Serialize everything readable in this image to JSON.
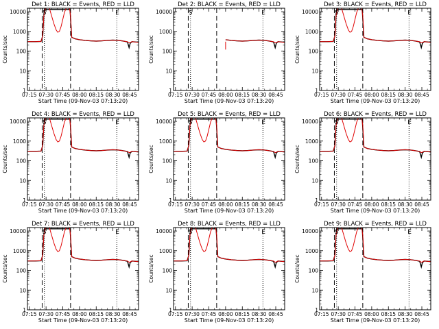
{
  "chart_data": {
    "type": "line",
    "x_tick_labels": [
      "07:15",
      "07:30",
      "07:45",
      "08:00",
      "08:15",
      "08:30",
      "08:45"
    ],
    "x_ticks_minutes": [
      435,
      450,
      465,
      480,
      495,
      510,
      525
    ],
    "xlim_minutes": [
      433.3,
      533.0
    ],
    "ylim": [
      1,
      15000
    ],
    "y_scale": "log",
    "y_tick_labels": [
      "1",
      "10",
      "100",
      "1000",
      "10000"
    ],
    "y_tick_values": [
      1,
      10,
      100,
      1000,
      10000
    ],
    "ylabel": "Counts/sec",
    "xlabel": "Start Time (09-Nov-03 07:13:20)",
    "vertical_markers": {
      "dashed_minutes": [
        446.5,
        472.0
      ],
      "dotted_minutes": [
        448.5,
        513.5
      ]
    },
    "top_markers": [
      {
        "label": "S",
        "x_minutes": 448.5
      },
      {
        "label": "E",
        "x_minutes": 514.0
      }
    ],
    "series_colors": {
      "events": "#000000",
      "lld": "#e00000"
    },
    "panels": [
      {
        "title": "Det 1: BLACK = Events, RED = LLD",
        "has_early_data": true
      },
      {
        "title": "Det 2: BLACK = Events, RED = LLD",
        "has_early_data": false
      },
      {
        "title": "Det 3: BLACK = Events, RED = LLD",
        "has_early_data": true
      },
      {
        "title": "Det 4: BLACK = Events, RED = LLD",
        "has_early_data": true
      },
      {
        "title": "Det 5: BLACK = Events, RED = LLD",
        "has_early_data": true
      },
      {
        "title": "Det 6: BLACK = Events, RED = LLD",
        "has_early_data": true
      },
      {
        "title": "Det 7: BLACK = Events, RED = LLD",
        "has_early_data": true
      },
      {
        "title": "Det 8: BLACK = Events, RED = LLD",
        "has_early_data": true
      },
      {
        "title": "Det 9: BLACK = Events, RED = LLD",
        "has_early_data": true
      }
    ],
    "series_template": {
      "events_x": [
        433.3,
        440,
        445.5,
        447.0,
        448.0,
        448.5,
        471.5,
        473,
        476,
        480,
        485,
        490,
        495,
        500,
        505,
        510,
        515,
        518,
        521,
        523,
        524.5,
        525.5,
        527,
        530,
        533
      ],
      "events_y": [
        300,
        300,
        310,
        600,
        6000,
        13000,
        13000,
        500,
        420,
        380,
        350,
        330,
        320,
        330,
        350,
        360,
        350,
        330,
        310,
        290,
        150,
        250,
        300,
        290,
        280
      ],
      "lld_x": [
        433.3,
        440,
        445.5,
        447.0,
        448.0,
        449.5,
        451,
        453,
        455,
        457,
        459,
        460.5,
        462,
        463.5,
        465,
        466.5,
        468,
        469.5,
        471,
        472,
        473,
        476,
        480,
        485,
        490,
        495,
        500,
        505,
        510,
        515,
        518,
        521,
        523,
        524.5,
        525.5,
        527,
        530,
        533
      ],
      "lld_y": [
        300,
        300,
        310,
        600,
        6000,
        15000,
        15000,
        15000,
        6000,
        2500,
        1200,
        900,
        1000,
        1800,
        4000,
        9000,
        15000,
        15000,
        15000,
        6000,
        500,
        420,
        380,
        350,
        330,
        320,
        330,
        350,
        360,
        350,
        330,
        310,
        300,
        260,
        270,
        300,
        290,
        280
      ]
    }
  }
}
